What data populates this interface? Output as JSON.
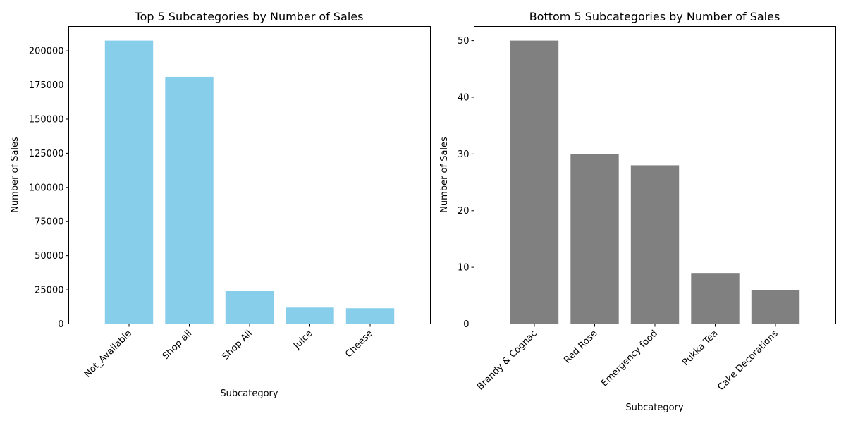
{
  "chart_data": [
    {
      "type": "bar",
      "title": "Top 5 Subcategories by Number of Sales",
      "xlabel": "Subcategory",
      "ylabel": "Number of Sales",
      "categories": [
        "Not_Available",
        "Shop all",
        "Shop All",
        "Juice",
        "Cheese"
      ],
      "values": [
        207500,
        181000,
        24000,
        12000,
        11500
      ],
      "ylim": [
        0,
        217875
      ],
      "yticks": [
        0,
        25000,
        50000,
        75000,
        100000,
        125000,
        150000,
        175000,
        200000
      ],
      "bar_color": "#87ceeb",
      "grid": false
    },
    {
      "type": "bar",
      "title": "Bottom 5 Subcategories by Number of Sales",
      "xlabel": "Subcategory",
      "ylabel": "Number of Sales",
      "categories": [
        "Brandy & Cognac",
        "Red Rose",
        "Emergency food",
        "Pukka Tea",
        "Cake Decorations"
      ],
      "values": [
        50,
        30,
        28,
        9,
        6
      ],
      "ylim": [
        0,
        52.5
      ],
      "yticks": [
        0,
        10,
        20,
        30,
        40,
        50
      ],
      "bar_color": "#808080",
      "grid": false
    }
  ]
}
